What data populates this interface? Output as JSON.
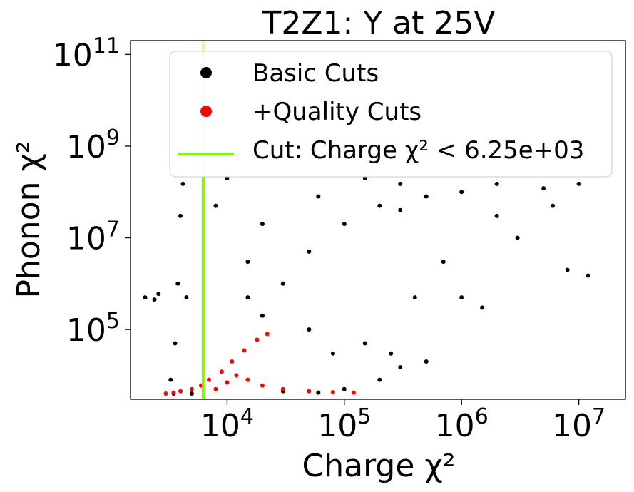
{
  "chart_data": {
    "type": "scatter",
    "title": "T2Z1: Y at 25V",
    "xlabel": "Charge χ²",
    "ylabel": "Phonon χ²",
    "xscale": "log",
    "yscale": "log",
    "xlim": [
      1500,
      25000000
    ],
    "ylim": [
      3000,
      200000000000
    ],
    "x_ticks": [
      {
        "value": 10000,
        "base": "10",
        "exp": "4"
      },
      {
        "value": 100000,
        "base": "10",
        "exp": "5"
      },
      {
        "value": 1000000,
        "base": "10",
        "exp": "6"
      },
      {
        "value": 10000000,
        "base": "10",
        "exp": "7"
      }
    ],
    "y_ticks": [
      {
        "value": 100000,
        "base": "10",
        "exp": "5"
      },
      {
        "value": 10000000,
        "base": "10",
        "exp": "7"
      },
      {
        "value": 1000000000,
        "base": "10",
        "exp": "9"
      },
      {
        "value": 100000000000,
        "base": "10",
        "exp": "11"
      }
    ],
    "series": [
      {
        "name": "Basic Cuts",
        "color": "#000000",
        "marker": "dot",
        "points": [
          [
            3500,
            4000
          ],
          [
            3600,
            50000
          ],
          [
            3800,
            1000000
          ],
          [
            4000,
            30000000
          ],
          [
            4200,
            150000000
          ],
          [
            3300,
            8000
          ],
          [
            4500,
            500000
          ],
          [
            5000,
            4000
          ],
          [
            2000,
            500000
          ],
          [
            2400,
            450000
          ],
          [
            2600,
            600000
          ],
          [
            15000,
            500000
          ],
          [
            20000,
            200000
          ],
          [
            30000,
            4500
          ],
          [
            60000,
            4200
          ],
          [
            100000,
            5000
          ],
          [
            200000,
            8000
          ],
          [
            300000,
            15000
          ],
          [
            500000,
            20000
          ],
          [
            150000,
            50000
          ],
          [
            250000,
            30000
          ],
          [
            80000,
            30000
          ],
          [
            30000,
            1000000
          ],
          [
            50000,
            5000000
          ],
          [
            100000,
            20000000
          ],
          [
            200000,
            50000000
          ],
          [
            300000,
            40000000
          ],
          [
            500000,
            80000000
          ],
          [
            1000000,
            100000000
          ],
          [
            2000000,
            150000000
          ],
          [
            5000000,
            120000000
          ],
          [
            10000000,
            150000000
          ],
          [
            3000000,
            10000000
          ],
          [
            8000000,
            2000000
          ],
          [
            12000000,
            1500000
          ],
          [
            1000000,
            500000
          ],
          [
            50000,
            100000
          ],
          [
            20000,
            20000000
          ],
          [
            8000,
            50000000
          ],
          [
            15000,
            3000000
          ],
          [
            400000,
            500000
          ],
          [
            700000,
            3000000
          ],
          [
            2000000,
            30000000
          ],
          [
            150000,
            200000000
          ],
          [
            60000,
            80000000
          ],
          [
            10000,
            200000000
          ],
          [
            300000,
            150000000
          ],
          [
            1500000,
            300000
          ],
          [
            6000000,
            50000000
          ]
        ]
      },
      {
        "name": "+Quality Cuts",
        "color": "#ff0000",
        "marker": "dot",
        "points": [
          [
            3000,
            4000
          ],
          [
            3500,
            4200
          ],
          [
            4000,
            4500
          ],
          [
            5000,
            5000
          ],
          [
            6000,
            6000
          ],
          [
            7000,
            8000
          ],
          [
            9000,
            12000
          ],
          [
            11000,
            20000
          ],
          [
            14000,
            35000
          ],
          [
            18000,
            60000
          ],
          [
            22000,
            80000
          ],
          [
            12000,
            10000
          ],
          [
            15000,
            8000
          ],
          [
            20000,
            6000
          ],
          [
            30000,
            5000
          ],
          [
            50000,
            4500
          ],
          [
            80000,
            4300
          ],
          [
            120000,
            4200
          ],
          [
            8000,
            5000
          ],
          [
            10000,
            7000
          ]
        ]
      },
      {
        "name": "Cut: Charge χ² < 6.25e+03",
        "color": "#7cfc00",
        "marker": "line",
        "x_value": 6250
      }
    ],
    "legend": {
      "position": "top-right",
      "entries": [
        {
          "label": "Basic Cuts",
          "color": "#000000",
          "kind": "dot"
        },
        {
          "label": "+Quality Cuts",
          "color": "#ff0000",
          "kind": "dot"
        },
        {
          "label": "Cut: Charge χ² < 6.25e+03",
          "color": "#7cfc00",
          "kind": "line"
        }
      ]
    }
  }
}
